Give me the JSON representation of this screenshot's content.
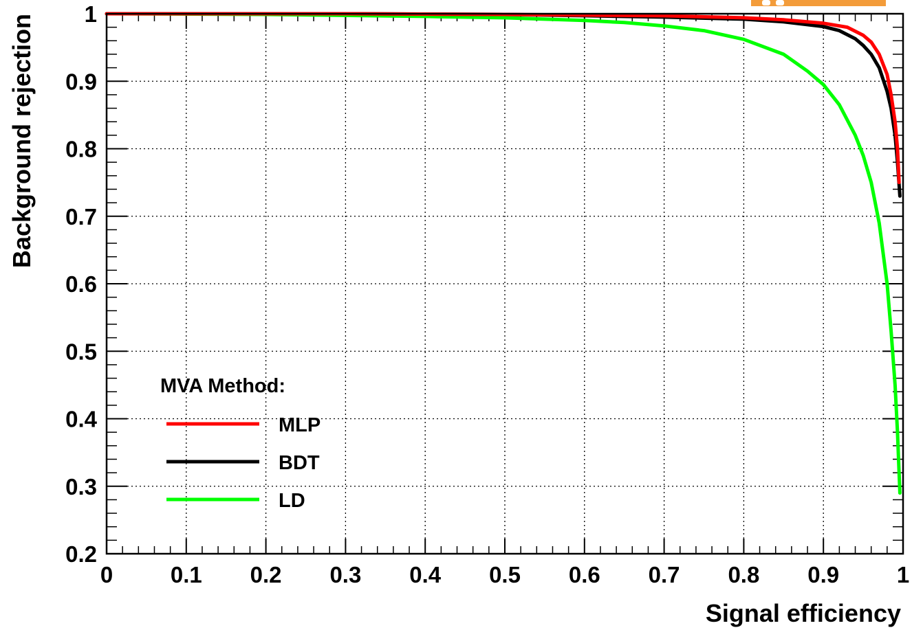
{
  "chart_data": {
    "type": "line",
    "xlabel": "Signal efficiency",
    "ylabel": "Background rejection",
    "xlim": [
      0,
      1
    ],
    "ylim": [
      0.2,
      1
    ],
    "xticks": [
      "0",
      "0.1",
      "0.2",
      "0.3",
      "0.4",
      "0.5",
      "0.6",
      "0.7",
      "0.8",
      "0.9",
      "1"
    ],
    "yticks": [
      "0.2",
      "0.3",
      "0.4",
      "0.5",
      "0.6",
      "0.7",
      "0.8",
      "0.9",
      "1"
    ],
    "grid": true,
    "legend": {
      "title": "MVA Method:",
      "position": "bottom-left",
      "entries": [
        "MLP",
        "BDT",
        "LD"
      ]
    },
    "series": [
      {
        "name": "MLP",
        "color": "#ff0000",
        "points": [
          [
            0,
            1.0
          ],
          [
            0.3,
            1.0
          ],
          [
            0.5,
            0.999
          ],
          [
            0.6,
            0.998
          ],
          [
            0.7,
            0.997
          ],
          [
            0.8,
            0.994
          ],
          [
            0.85,
            0.991
          ],
          [
            0.9,
            0.986
          ],
          [
            0.93,
            0.98
          ],
          [
            0.95,
            0.968
          ],
          [
            0.96,
            0.958
          ],
          [
            0.97,
            0.94
          ],
          [
            0.98,
            0.91
          ],
          [
            0.985,
            0.88
          ],
          [
            0.99,
            0.84
          ],
          [
            0.993,
            0.8
          ],
          [
            0.995,
            0.75
          ]
        ]
      },
      {
        "name": "BDT",
        "color": "#000000",
        "points": [
          [
            0,
            1.0
          ],
          [
            0.3,
            1.0
          ],
          [
            0.5,
            0.999
          ],
          [
            0.6,
            0.997
          ],
          [
            0.7,
            0.995
          ],
          [
            0.8,
            0.992
          ],
          [
            0.85,
            0.988
          ],
          [
            0.9,
            0.981
          ],
          [
            0.92,
            0.975
          ],
          [
            0.94,
            0.963
          ],
          [
            0.95,
            0.953
          ],
          [
            0.96,
            0.94
          ],
          [
            0.97,
            0.92
          ],
          [
            0.98,
            0.885
          ],
          [
            0.985,
            0.86
          ],
          [
            0.99,
            0.82
          ],
          [
            0.993,
            0.78
          ],
          [
            0.996,
            0.73
          ]
        ]
      },
      {
        "name": "LD",
        "color": "#00ff00",
        "points": [
          [
            0,
            1.0
          ],
          [
            0.2,
            0.999
          ],
          [
            0.4,
            0.996
          ],
          [
            0.5,
            0.994
          ],
          [
            0.6,
            0.99
          ],
          [
            0.65,
            0.987
          ],
          [
            0.7,
            0.982
          ],
          [
            0.75,
            0.975
          ],
          [
            0.8,
            0.962
          ],
          [
            0.85,
            0.94
          ],
          [
            0.88,
            0.915
          ],
          [
            0.9,
            0.895
          ],
          [
            0.92,
            0.865
          ],
          [
            0.94,
            0.82
          ],
          [
            0.95,
            0.79
          ],
          [
            0.96,
            0.75
          ],
          [
            0.97,
            0.69
          ],
          [
            0.98,
            0.6
          ],
          [
            0.985,
            0.53
          ],
          [
            0.99,
            0.45
          ],
          [
            0.993,
            0.38
          ],
          [
            0.996,
            0.29
          ]
        ]
      }
    ]
  }
}
